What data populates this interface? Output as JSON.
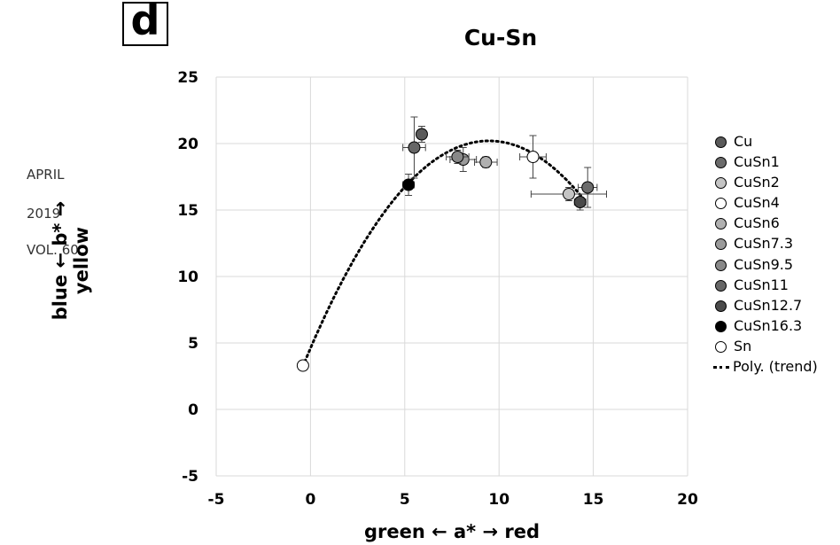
{
  "side_text": {
    "month": "APRIL",
    "year": "2019",
    "volume": "VOL. 60"
  },
  "panel_label": "d",
  "chart_data": {
    "type": "scatter",
    "title": "Cu-Sn",
    "xlabel": "green ← a* → red",
    "ylabel": "blue ← b* → yellow",
    "xlim": [
      -5,
      20
    ],
    "ylim": [
      -5,
      25
    ],
    "xticks": [
      -5,
      0,
      5,
      10,
      15,
      20
    ],
    "yticks": [
      -5,
      0,
      5,
      10,
      15,
      20,
      25
    ],
    "grid": true,
    "legend_position": "right",
    "series": [
      {
        "name": "Cu",
        "color": "#5a5a5a",
        "points": [
          {
            "x": 5.9,
            "y": 20.7,
            "xerr": 0.2,
            "yerr": 0.6
          }
        ]
      },
      {
        "name": "CuSn1",
        "color": "#6b6b6b",
        "points": [
          {
            "x": 14.7,
            "y": 16.7,
            "xerr": 0.5,
            "yerr": 1.5
          }
        ]
      },
      {
        "name": "CuSn2",
        "color": "#c4c4c4",
        "points": [
          {
            "x": 13.7,
            "y": 16.2,
            "xerr": 2.0,
            "yerr": 0.5
          }
        ]
      },
      {
        "name": "CuSn4",
        "color": "#ffffff",
        "points": [
          {
            "x": 11.8,
            "y": 19.0,
            "xerr": 0.7,
            "yerr": 1.6
          }
        ]
      },
      {
        "name": "CuSn6",
        "color": "#b0b0b0",
        "points": [
          {
            "x": 9.3,
            "y": 18.6,
            "xerr": 0.6,
            "yerr": 0.4
          }
        ]
      },
      {
        "name": "CuSn7.3",
        "color": "#9a9a9a",
        "points": [
          {
            "x": 8.1,
            "y": 18.8,
            "xerr": 0.7,
            "yerr": 0.9
          }
        ]
      },
      {
        "name": "CuSn9.5",
        "color": "#888888",
        "points": [
          {
            "x": 7.8,
            "y": 19.0,
            "xerr": 0.6,
            "yerr": 0.5
          }
        ]
      },
      {
        "name": "CuSn11",
        "color": "#666666",
        "points": [
          {
            "x": 5.5,
            "y": 19.7,
            "xerr": 0.6,
            "yerr": 2.3
          }
        ]
      },
      {
        "name": "CuSn12.7",
        "color": "#4a4a4a",
        "points": [
          {
            "x": 14.3,
            "y": 15.6,
            "xerr": 0.3,
            "yerr": 0.6
          }
        ]
      },
      {
        "name": "CuSn16.3",
        "color": "#000000",
        "points": [
          {
            "x": 5.2,
            "y": 16.9,
            "xerr": 0.3,
            "yerr": 0.8
          }
        ]
      },
      {
        "name": "Sn",
        "color": "#ffffff",
        "points": [
          {
            "x": -0.4,
            "y": 3.3,
            "xerr": 0,
            "yerr": 0
          }
        ]
      }
    ],
    "trendline": {
      "name": "Poly. (trend)",
      "style": "dotted",
      "x_start": -0.3,
      "x_end": 14.5,
      "fit_points": [
        [
          -0.3,
          3.6
        ],
        [
          9.3,
          20.2
        ],
        [
          14.5,
          15.8
        ]
      ]
    }
  }
}
